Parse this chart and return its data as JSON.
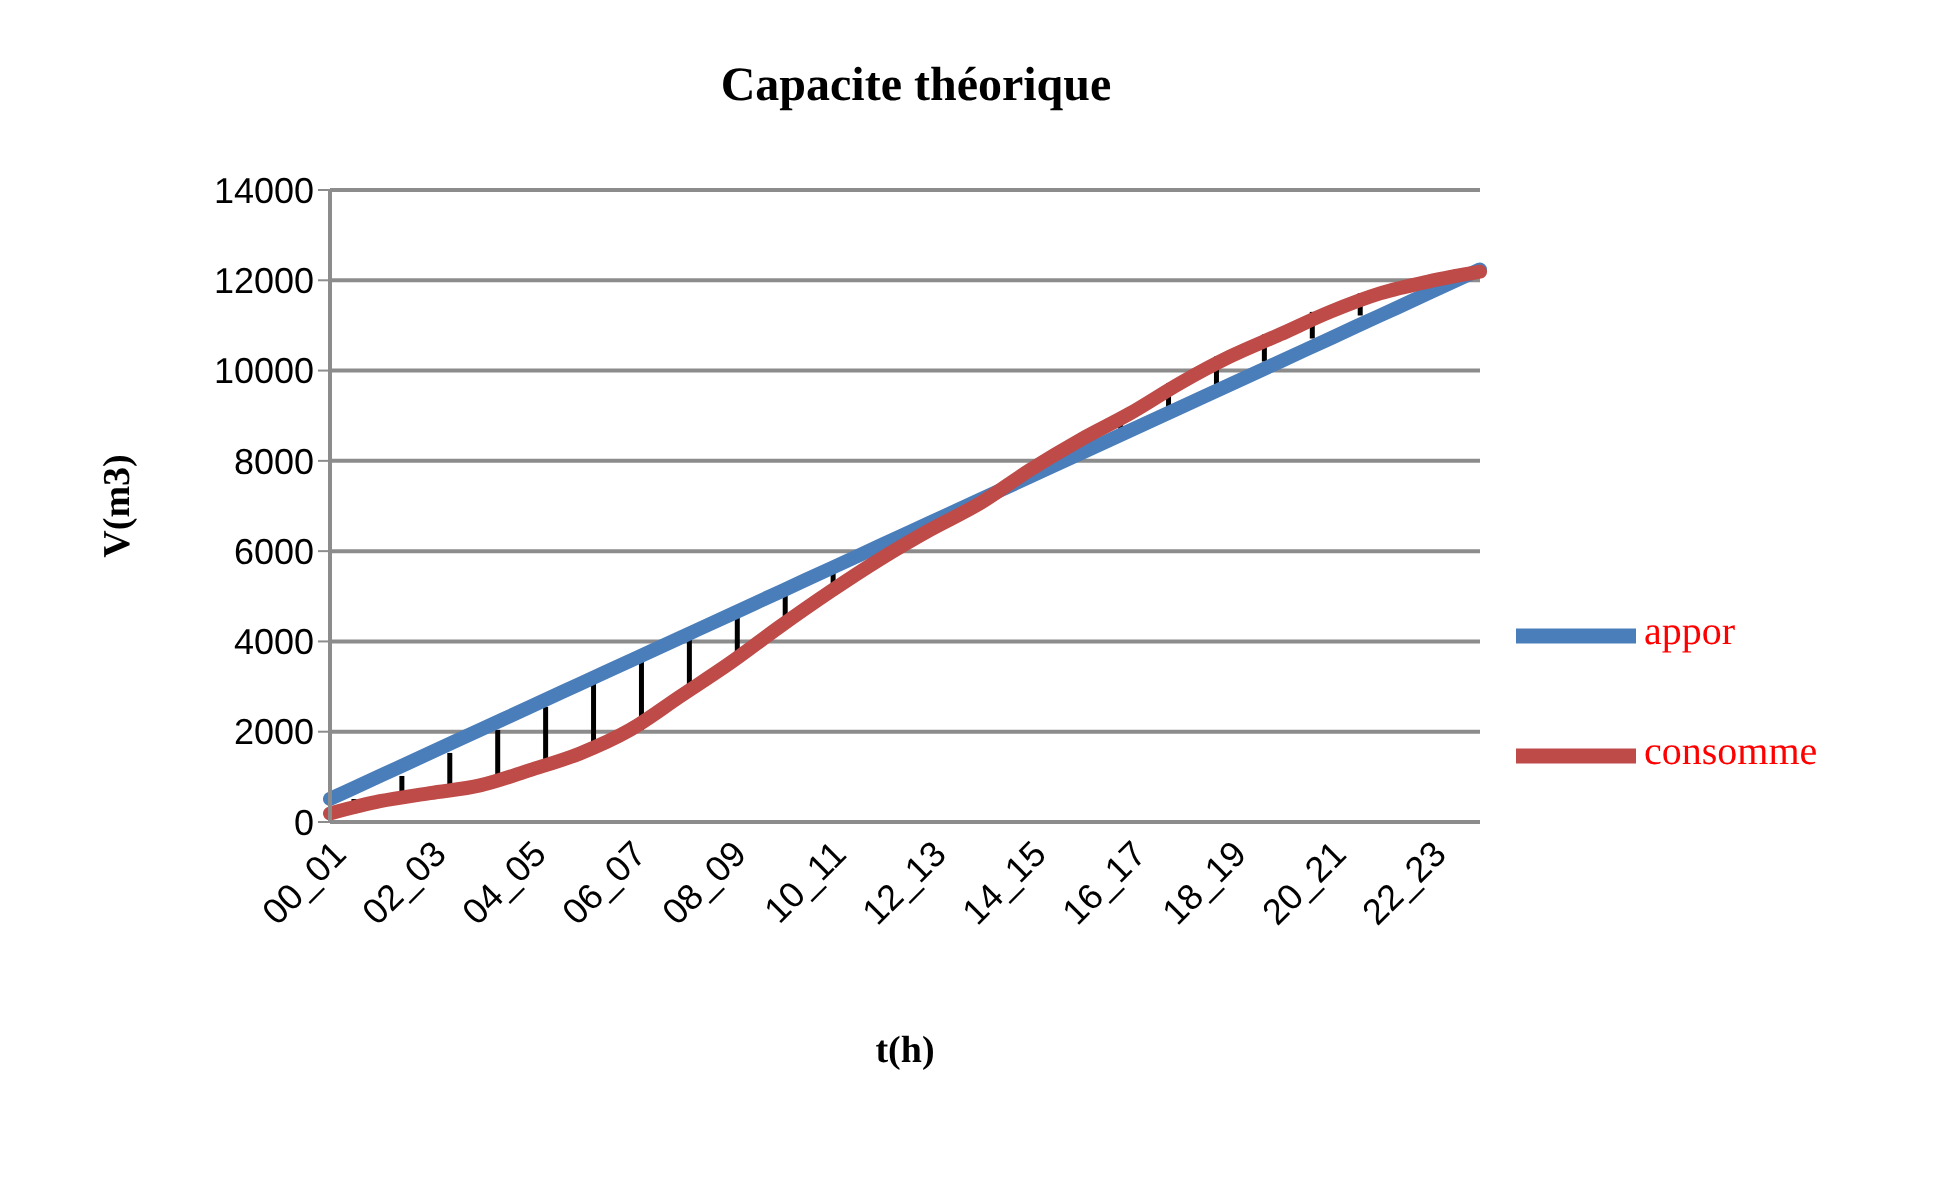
{
  "chart_data": {
    "type": "line",
    "title": "Capacite théorique",
    "xlabel": "t(h)",
    "ylabel": "V(m3)",
    "categories": [
      "00_01",
      null,
      "02_03",
      null,
      "04_05",
      null,
      "06_07",
      null,
      "08_09",
      null,
      "10_11",
      null,
      "12_13",
      null,
      "14_15",
      null,
      "16_17",
      null,
      "18_19",
      null,
      "20_21",
      null,
      "22_23",
      null
    ],
    "series": [
      {
        "name": "appor",
        "color": "#4a7ebb",
        "values": [
          510,
          1020,
          1530,
          2040,
          2550,
          3060,
          3570,
          4080,
          4590,
          5100,
          5610,
          6120,
          6630,
          7140,
          7650,
          8160,
          8670,
          9180,
          9690,
          10200,
          10710,
          11220,
          11730,
          12240
        ]
      },
      {
        "name": "consomme",
        "color": "#be4b48",
        "values": [
          190,
          460,
          640,
          810,
          1150,
          1520,
          2040,
          2780,
          3520,
          4330,
          5100,
          5820,
          6470,
          7060,
          7800,
          8460,
          9050,
          9720,
          10310,
          10800,
          11300,
          11710,
          11980,
          12190
        ]
      }
    ],
    "ylim": [
      0,
      14000
    ],
    "yticks": [
      0,
      2000,
      4000,
      6000,
      8000,
      10000,
      12000,
      14000
    ],
    "grid": "y",
    "legend": "right",
    "marker": "none",
    "line_style": "solid"
  }
}
